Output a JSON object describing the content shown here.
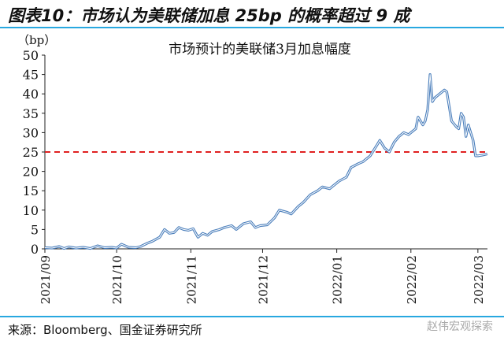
{
  "heading": "图表10：市场认为美联储加息 25bp 的概率超过 9 成",
  "source": "来源：Bloomberg、国金证券研究所",
  "watermark": "赵伟宏观探索",
  "colors": {
    "line": "#4a7ebb",
    "threshold": "#e02020",
    "rule": "#28a8e0"
  },
  "chart_data": {
    "type": "line",
    "title": "市场预计的美联储3月加息幅度",
    "ylabel": "（bp）",
    "xlabel": "",
    "ylim": [
      0,
      50
    ],
    "yticks": [
      0,
      5,
      10,
      15,
      20,
      25,
      30,
      35,
      40,
      45,
      50
    ],
    "xlim_days": [
      0,
      185
    ],
    "xticks": [
      {
        "label": "2021/09",
        "day": 0
      },
      {
        "label": "2021/10",
        "day": 30
      },
      {
        "label": "2021/11",
        "day": 61
      },
      {
        "label": "2021/12",
        "day": 91
      },
      {
        "label": "2022/01",
        "day": 122
      },
      {
        "label": "2022/02",
        "day": 153
      },
      {
        "label": "2022/03",
        "day": 181
      }
    ],
    "threshold": 25,
    "series": [
      {
        "name": "市场预计的美联储3月加息幅度",
        "x_day": [
          0,
          3,
          6,
          8,
          10,
          13,
          16,
          19,
          22,
          25,
          28,
          30,
          32,
          35,
          38,
          40,
          43,
          45,
          48,
          50,
          52,
          54,
          56,
          58,
          60,
          62,
          64,
          66,
          68,
          70,
          73,
          75,
          78,
          80,
          83,
          86,
          88,
          90,
          93,
          96,
          98,
          101,
          103,
          106,
          108,
          111,
          114,
          116,
          119,
          121,
          123,
          126,
          128,
          131,
          133,
          136,
          139,
          140,
          142,
          144,
          146,
          148,
          150,
          152,
          153,
          155,
          156,
          158,
          159,
          160,
          161,
          162,
          163,
          165,
          167,
          168,
          170,
          172,
          173,
          174,
          175,
          176,
          177,
          178,
          179,
          180,
          181,
          183,
          185
        ],
        "y": [
          0.3,
          0.2,
          0.6,
          0.1,
          0.5,
          0.2,
          0.4,
          0.1,
          0.8,
          0.3,
          0.4,
          0.2,
          1.2,
          0.4,
          0.3,
          0.6,
          1.5,
          2,
          3,
          5,
          4,
          4.2,
          5.5,
          5,
          4.8,
          5.2,
          3,
          4,
          3.5,
          4.5,
          5,
          5.5,
          6,
          5,
          6.5,
          7,
          5.5,
          6,
          6.2,
          8,
          10,
          9.5,
          9,
          11,
          12,
          14,
          15,
          16,
          15.5,
          16.5,
          17.5,
          18.5,
          21,
          22,
          22.5,
          24,
          27,
          28,
          26,
          25,
          27.5,
          29,
          30,
          29.5,
          30,
          31,
          34,
          32,
          33,
          36,
          45,
          38,
          39,
          40,
          41,
          40.5,
          33,
          31.5,
          31,
          35,
          34,
          29,
          32,
          30,
          28,
          24,
          24,
          24.2,
          24.5
        ]
      }
    ]
  }
}
